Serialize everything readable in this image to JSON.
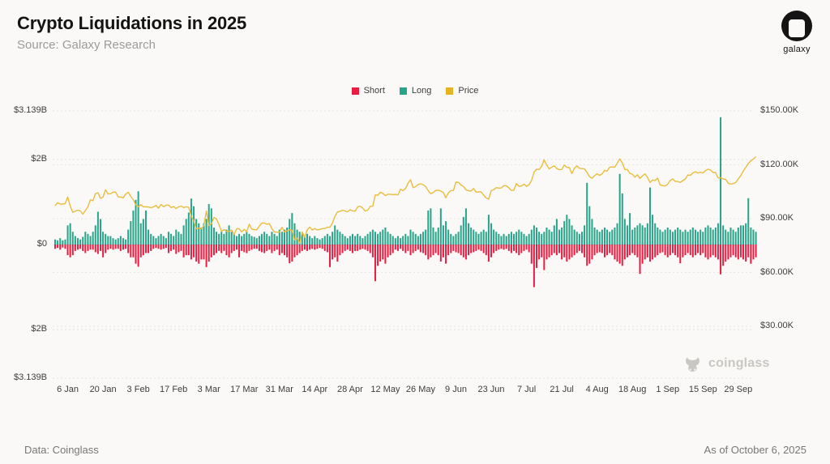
{
  "header": {
    "title": "Crypto Liquidations in 2025",
    "subtitle": "Source: Galaxy Research",
    "logo_text": "galaxy"
  },
  "legend": [
    {
      "label": "Short",
      "color": "#e91d41"
    },
    {
      "label": "Long",
      "color": "#27a48a"
    },
    {
      "label": "Price",
      "color": "#e6b422"
    }
  ],
  "watermark": {
    "text": "coinglass"
  },
  "footer": {
    "left": "Data: Coinglass",
    "right": "As of October 6, 2025"
  },
  "chart_data": {
    "type": "bar",
    "overlay": "line",
    "title": "Crypto Liquidations in 2025",
    "start_date": "2025-01-01",
    "end_date": "2025-10-06",
    "grid": "dashed-horizontal",
    "legend_position": "top-center",
    "left_axis": {
      "unit": "USD billions (liquidations)",
      "mirrored": true,
      "max_billions": 3.139,
      "tick_values_billions": [
        3.139,
        2,
        0,
        -2,
        -3.139
      ],
      "tick_labels": [
        "$3.139B",
        "$2B",
        "$0",
        "$2B",
        "$3.139B"
      ]
    },
    "right_axis": {
      "unit": "USD thousands (BTC price)",
      "range_thousands": [
        30,
        150
      ],
      "tick_values_thousands": [
        150,
        120,
        90,
        60,
        30
      ],
      "tick_labels": [
        "$150.00K",
        "$120.00K",
        "$90.00K",
        "$60.00K",
        "$30.00K"
      ]
    },
    "x_tick_labels": [
      "6 Jan",
      "20 Jan",
      "3 Feb",
      "17 Feb",
      "3 Mar",
      "17 Mar",
      "31 Mar",
      "14 Apr",
      "28 Apr",
      "12 May",
      "26 May",
      "9 Jun",
      "23 Jun",
      "7 Jul",
      "21 Jul",
      "4 Aug",
      "18 Aug",
      "1 Sep",
      "15 Sep",
      "29 Sep"
    ],
    "x_tick_day_indices": [
      5,
      19,
      33,
      47,
      61,
      75,
      89,
      103,
      117,
      131,
      145,
      159,
      173,
      187,
      201,
      215,
      229,
      243,
      257,
      271
    ],
    "series": [
      {
        "name": "Long",
        "render": "bar-up",
        "color": "#27a48a",
        "unit": "$B",
        "values": [
          0.12,
          0.1,
          0.15,
          0.1,
          0.12,
          0.45,
          0.5,
          0.3,
          0.2,
          0.15,
          0.12,
          0.18,
          0.3,
          0.25,
          0.2,
          0.3,
          0.45,
          0.77,
          0.6,
          0.3,
          0.25,
          0.2,
          0.2,
          0.15,
          0.12,
          0.15,
          0.2,
          0.15,
          0.12,
          0.35,
          0.55,
          0.8,
          1.05,
          1.25,
          0.5,
          0.6,
          0.8,
          0.35,
          0.25,
          0.2,
          0.15,
          0.2,
          0.25,
          0.2,
          0.15,
          0.3,
          0.25,
          0.2,
          0.35,
          0.3,
          0.25,
          0.45,
          0.6,
          0.75,
          1.08,
          0.9,
          0.6,
          0.5,
          0.4,
          0.5,
          0.6,
          0.95,
          0.85,
          0.4,
          0.3,
          0.25,
          0.3,
          0.25,
          0.35,
          0.45,
          0.3,
          0.25,
          0.2,
          0.25,
          0.2,
          0.25,
          0.3,
          0.25,
          0.2,
          0.18,
          0.15,
          0.2,
          0.25,
          0.3,
          0.25,
          0.2,
          0.3,
          0.25,
          0.2,
          0.35,
          0.3,
          0.35,
          0.4,
          0.6,
          0.74,
          0.5,
          0.35,
          0.3,
          0.25,
          0.2,
          0.25,
          0.2,
          0.15,
          0.2,
          0.15,
          0.12,
          0.15,
          0.2,
          0.25,
          0.2,
          0.3,
          0.45,
          0.35,
          0.3,
          0.25,
          0.2,
          0.15,
          0.2,
          0.25,
          0.2,
          0.25,
          0.2,
          0.15,
          0.2,
          0.25,
          0.3,
          0.35,
          0.3,
          0.25,
          0.3,
          0.35,
          0.4,
          0.3,
          0.25,
          0.2,
          0.15,
          0.2,
          0.15,
          0.2,
          0.25,
          0.2,
          0.35,
          0.3,
          0.25,
          0.2,
          0.25,
          0.3,
          0.35,
          0.8,
          0.85,
          0.4,
          0.3,
          0.4,
          0.85,
          0.45,
          0.55,
          0.35,
          0.25,
          0.2,
          0.25,
          0.3,
          0.45,
          0.65,
          0.85,
          0.5,
          0.4,
          0.35,
          0.3,
          0.25,
          0.3,
          0.35,
          0.3,
          0.7,
          0.5,
          0.35,
          0.3,
          0.25,
          0.2,
          0.25,
          0.2,
          0.25,
          0.3,
          0.25,
          0.3,
          0.35,
          0.3,
          0.25,
          0.2,
          0.25,
          0.35,
          0.45,
          0.4,
          0.3,
          0.25,
          0.3,
          0.4,
          0.35,
          0.3,
          0.45,
          0.6,
          0.35,
          0.4,
          0.55,
          0.7,
          0.6,
          0.45,
          0.35,
          0.3,
          0.25,
          0.3,
          0.45,
          1.45,
          0.9,
          0.6,
          0.4,
          0.35,
          0.3,
          0.35,
          0.4,
          0.35,
          0.3,
          0.35,
          0.4,
          0.5,
          1.66,
          1.2,
          0.6,
          0.45,
          0.74,
          0.35,
          0.4,
          0.45,
          0.5,
          0.45,
          0.4,
          0.5,
          1.34,
          0.7,
          0.5,
          0.4,
          0.35,
          0.3,
          0.35,
          0.4,
          0.35,
          0.3,
          0.35,
          0.4,
          0.35,
          0.3,
          0.35,
          0.3,
          0.35,
          0.4,
          0.35,
          0.3,
          0.35,
          0.3,
          0.4,
          0.45,
          0.4,
          0.35,
          0.4,
          0.5,
          2.99,
          0.45,
          0.35,
          0.3,
          0.4,
          0.35,
          0.3,
          0.4,
          0.45,
          0.45,
          0.5,
          1.09,
          0.4,
          0.35,
          0.3
        ]
      },
      {
        "name": "Short",
        "render": "bar-down",
        "color": "#e91d41",
        "unit": "$B",
        "values": [
          0.1,
          0.08,
          0.12,
          0.07,
          0.1,
          0.25,
          0.3,
          0.25,
          0.15,
          0.12,
          0.1,
          0.15,
          0.2,
          0.15,
          0.12,
          0.12,
          0.18,
          0.22,
          0.15,
          0.3,
          0.2,
          0.12,
          0.1,
          0.12,
          0.1,
          0.1,
          0.15,
          0.12,
          0.1,
          0.2,
          0.3,
          0.3,
          0.45,
          0.52,
          0.3,
          0.25,
          0.2,
          0.2,
          0.15,
          0.1,
          0.08,
          0.1,
          0.12,
          0.1,
          0.08,
          0.2,
          0.15,
          0.12,
          0.22,
          0.18,
          0.15,
          0.3,
          0.25,
          0.25,
          0.35,
          0.3,
          0.4,
          0.45,
          0.35,
          0.35,
          0.53,
          0.4,
          0.3,
          0.25,
          0.2,
          0.15,
          0.2,
          0.15,
          0.25,
          0.3,
          0.2,
          0.15,
          0.12,
          0.3,
          0.15,
          0.18,
          0.2,
          0.15,
          0.12,
          0.1,
          0.1,
          0.15,
          0.18,
          0.2,
          0.15,
          0.12,
          0.2,
          0.15,
          0.12,
          0.25,
          0.2,
          0.25,
          0.3,
          0.44,
          0.4,
          0.3,
          0.25,
          0.2,
          0.15,
          0.12,
          0.15,
          0.12,
          0.1,
          0.12,
          0.1,
          0.08,
          0.1,
          0.15,
          0.18,
          0.53,
          0.35,
          0.3,
          0.4,
          0.25,
          0.2,
          0.15,
          0.12,
          0.15,
          0.2,
          0.15,
          0.15,
          0.12,
          0.1,
          0.12,
          0.15,
          0.2,
          0.3,
          0.86,
          0.5,
          0.4,
          0.35,
          0.45,
          0.3,
          0.25,
          0.2,
          0.12,
          0.15,
          0.1,
          0.15,
          0.2,
          0.15,
          0.25,
          0.2,
          0.15,
          0.12,
          0.18,
          0.2,
          0.25,
          0.35,
          0.3,
          0.25,
          0.2,
          0.25,
          0.4,
          0.3,
          0.45,
          0.25,
          0.2,
          0.15,
          0.18,
          0.2,
          0.25,
          0.3,
          0.35,
          0.25,
          0.2,
          0.18,
          0.15,
          0.12,
          0.15,
          0.2,
          0.25,
          0.4,
          0.3,
          0.2,
          0.15,
          0.12,
          0.1,
          0.12,
          0.1,
          0.15,
          0.2,
          0.15,
          0.2,
          0.25,
          0.2,
          0.15,
          0.12,
          0.18,
          0.45,
          1.0,
          0.55,
          0.35,
          0.3,
          0.6,
          0.35,
          0.3,
          0.25,
          0.2,
          0.25,
          0.2,
          0.35,
          0.3,
          0.4,
          0.35,
          0.3,
          0.25,
          0.2,
          0.15,
          0.2,
          0.3,
          0.5,
          0.45,
          0.35,
          0.25,
          0.2,
          0.18,
          0.2,
          0.3,
          0.25,
          0.2,
          0.25,
          0.35,
          0.4,
          0.45,
          0.5,
          0.35,
          0.3,
          0.25,
          0.2,
          0.25,
          0.3,
          0.69,
          0.45,
          0.35,
          0.3,
          0.4,
          0.35,
          0.3,
          0.25,
          0.2,
          0.18,
          0.25,
          0.3,
          0.25,
          0.2,
          0.25,
          0.3,
          0.44,
          0.3,
          0.25,
          0.2,
          0.25,
          0.3,
          0.25,
          0.2,
          0.25,
          0.2,
          0.3,
          0.35,
          0.3,
          0.25,
          0.3,
          0.35,
          0.7,
          0.5,
          0.4,
          0.35,
          0.3,
          0.25,
          0.3,
          0.35,
          0.3,
          0.35,
          0.4,
          0.3,
          0.45,
          0.35,
          0.3
        ]
      },
      {
        "name": "Price",
        "render": "line",
        "color": "#e6b422",
        "unit": "$K",
        "values": [
          97.2,
          98.9,
          98.1,
          98.2,
          98.3,
          102.1,
          96.9,
          93.5,
          94.2,
          94.7,
          94.3,
          92.5,
          94.5,
          96.6,
          100.5,
          100.0,
          104.0,
          104.4,
          101.3,
          102.0,
          106.1,
          103.7,
          103.9,
          104.7,
          104.8,
          102.1,
          102.1,
          101.6,
          103.7,
          104.7,
          102.4,
          100.6,
          97.7,
          96.6,
          97.8,
          96.6,
          96.6,
          96.5,
          96.1,
          96.5,
          97.4,
          95.8,
          97.9,
          96.6,
          97.5,
          97.6,
          96.2,
          96.7,
          95.6,
          96.6,
          97.0,
          96.2,
          96.6,
          96.3,
          91.4,
          88.7,
          84.3,
          84.7,
          84.4,
          86.0,
          94.3,
          86.1,
          87.2,
          90.6,
          89.9,
          86.8,
          82.9,
          83.9,
          83.0,
          82.9,
          83.7,
          81.1,
          84.3,
          84.4,
          82.6,
          84.0,
          82.7,
          86.9,
          84.2,
          83.8,
          83.8,
          85.8,
          87.5,
          87.5,
          86.9,
          87.2,
          84.4,
          82.6,
          82.4,
          82.5,
          85.2,
          82.5,
          83.2,
          83.8,
          83.5,
          78.2,
          79.2,
          76.3,
          82.6,
          79.6,
          83.7,
          85.3,
          83.7,
          84.5,
          83.7,
          84.0,
          84.5,
          84.5,
          85.2,
          85.2,
          87.5,
          91.2,
          93.7,
          94.0,
          94.7,
          94.3,
          93.8,
          95.0,
          94.3,
          94.2,
          96.5,
          96.9,
          95.9,
          94.3,
          94.7,
          96.8,
          97.0,
          103.2,
          103.0,
          104.7,
          104.1,
          102.8,
          103.6,
          103.6,
          103.4,
          103.5,
          103.2,
          106.4,
          105.6,
          106.8,
          109.7,
          111.7,
          107.3,
          107.8,
          109.0,
          109.4,
          108.9,
          107.8,
          105.6,
          103.9,
          104.6,
          105.7,
          105.9,
          105.4,
          104.6,
          101.6,
          104.4,
          105.6,
          105.7,
          110.3,
          110.2,
          108.7,
          107.9,
          106.1,
          105.5,
          105.4,
          106.8,
          104.7,
          105.0,
          104.9,
          103.1,
          101.5,
          100.9,
          105.6,
          106.1,
          107.3,
          107.0,
          107.1,
          108.4,
          108.3,
          107.2,
          105.7,
          105.9,
          109.6,
          108.0,
          108.2,
          109.2,
          108.0,
          108.9,
          111.3,
          115.9,
          117.5,
          117.4,
          119.1,
          122.8,
          119.8,
          117.7,
          118.7,
          119.4,
          117.9,
          117.3,
          117.4,
          119.9,
          118.6,
          118.4,
          115.1,
          118.1,
          119.4,
          118.0,
          117.9,
          117.7,
          115.8,
          113.4,
          112.5,
          113.9,
          115.0,
          114.1,
          115.0,
          116.9,
          116.5,
          118.7,
          118.8,
          118.7,
          120.9,
          123.3,
          121.0,
          117.3,
          117.4,
          115.2,
          114.7,
          113.1,
          114.4,
          112.4,
          113.8,
          115.0,
          113.0,
          110.1,
          111.5,
          111.2,
          112.6,
          108.8,
          108.4,
          108.2,
          109.2,
          111.2,
          112.1,
          110.7,
          110.7,
          110.2,
          111.2,
          112.1,
          114.3,
          114.1,
          115.5,
          116.1,
          115.4,
          115.9,
          115.4,
          116.8,
          117.5,
          117.1,
          115.7,
          115.7,
          112.7,
          112.8,
          112.1,
          111.9,
          109.7,
          109.2,
          109.6,
          110.1,
          112.1,
          114.0,
          116.5,
          118.6,
          120.7,
          122.2,
          123.2,
          124.5
        ]
      }
    ]
  }
}
